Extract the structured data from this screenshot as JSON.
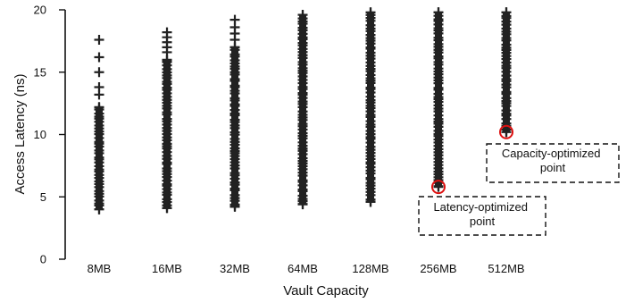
{
  "chart_data": {
    "type": "scatter",
    "title": "",
    "xlabel": "Vault Capacity",
    "ylabel": "Access Latency (ns)",
    "categories": [
      "8MB",
      "16MB",
      "32MB",
      "64MB",
      "128MB",
      "256MB",
      "512MB"
    ],
    "ylim": [
      0,
      20
    ],
    "yticks": [
      0,
      5,
      10,
      15,
      20
    ],
    "marker": "plus",
    "marker_color": "#222222",
    "grid": false,
    "legend": "none",
    "series": [
      {
        "category": "8MB",
        "dense_range": [
          4.0,
          12.2
        ],
        "outliers": [
          13.2,
          13.8,
          15.0,
          16.2,
          17.6
        ]
      },
      {
        "category": "16MB",
        "dense_range": [
          4.1,
          16.0
        ],
        "outliers": [
          16.6,
          17.0,
          17.4,
          17.8,
          18.2
        ]
      },
      {
        "category": "32MB",
        "dense_range": [
          4.2,
          17.0
        ],
        "outliers": [
          17.6,
          18.1,
          18.6,
          19.2
        ]
      },
      {
        "category": "64MB",
        "dense_range": [
          4.4,
          19.6
        ],
        "outliers": []
      },
      {
        "category": "128MB",
        "dense_range": [
          4.6,
          19.8
        ],
        "outliers": []
      },
      {
        "category": "256MB",
        "dense_range": [
          5.8,
          19.8
        ],
        "outliers": []
      },
      {
        "category": "512MB",
        "dense_range": [
          10.2,
          19.8
        ],
        "outliers": []
      }
    ],
    "annotations": [
      {
        "label": "Latency-optimized point",
        "category": "256MB",
        "value": 5.8,
        "highlight_color": "#dd1111"
      },
      {
        "label": "Capacity-optimized point",
        "category": "512MB",
        "value": 10.2,
        "highlight_color": "#dd1111"
      }
    ]
  }
}
